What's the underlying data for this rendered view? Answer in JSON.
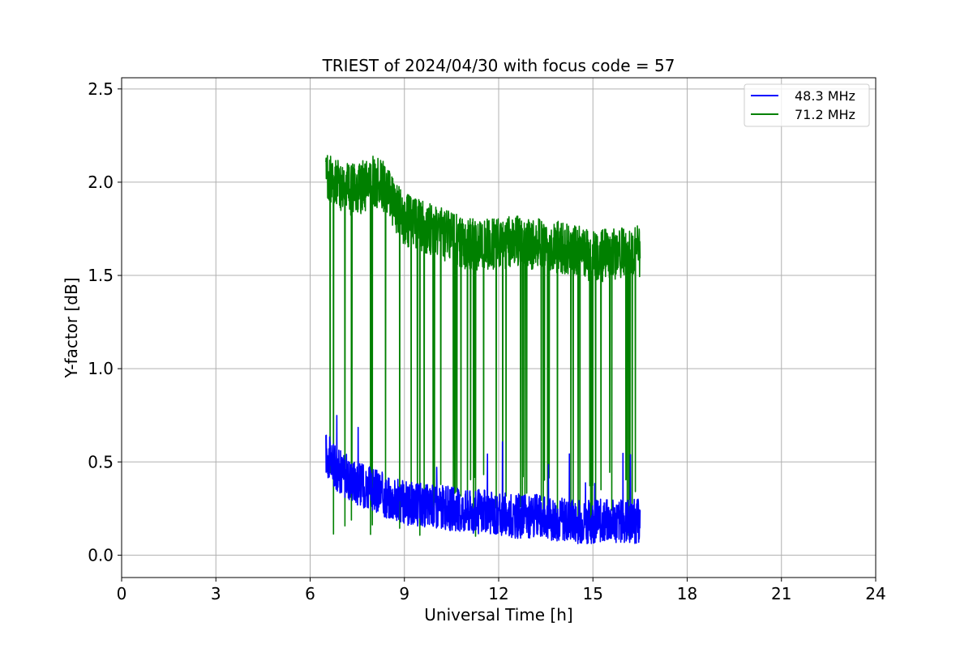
{
  "chart_data": {
    "type": "line",
    "title": "TRIEST of 2024/04/30 with focus code = 57",
    "xlabel": "Universal Time [h]",
    "ylabel": "Y-factor [dB]",
    "xlim": [
      0,
      24
    ],
    "ylim": [
      -0.12,
      2.56
    ],
    "xticks": [
      0,
      3,
      6,
      9,
      12,
      15,
      18,
      21,
      24
    ],
    "yticks": [
      0.0,
      0.5,
      1.0,
      1.5,
      2.0,
      2.5
    ],
    "xtick_labels": [
      "0",
      "3",
      "6",
      "9",
      "12",
      "15",
      "18",
      "21",
      "24"
    ],
    "ytick_labels": [
      "0.0",
      "0.5",
      "1.0",
      "1.5",
      "2.0",
      "2.5"
    ],
    "grid": true,
    "legend_position": "top-right",
    "series": [
      {
        "name": "48.3 MHz",
        "color": "#0000ff",
        "x": [
          6.5,
          6.6,
          6.8,
          7.0,
          7.3,
          7.6,
          8.0,
          8.5,
          9.0,
          9.5,
          10.0,
          10.5,
          11.0,
          11.5,
          12.0,
          12.5,
          13.0,
          13.5,
          14.0,
          14.5,
          15.0,
          15.5,
          16.0,
          16.5
        ],
        "y": [
          0.55,
          0.52,
          0.47,
          0.44,
          0.41,
          0.38,
          0.35,
          0.31,
          0.28,
          0.27,
          0.26,
          0.25,
          0.24,
          0.23,
          0.22,
          0.21,
          0.21,
          0.2,
          0.19,
          0.18,
          0.18,
          0.18,
          0.18,
          0.18
        ]
      },
      {
        "name": "71.2 MHz",
        "color": "#008000",
        "x": [
          6.5,
          6.7,
          7.0,
          7.3,
          7.6,
          8.0,
          8.3,
          8.7,
          9.0,
          9.5,
          10.0,
          10.5,
          11.0,
          11.5,
          12.0,
          12.5,
          13.0,
          13.5,
          14.0,
          14.5,
          15.0,
          15.5,
          16.0,
          16.5
        ],
        "y": [
          2.0,
          2.02,
          1.98,
          1.96,
          1.97,
          2.0,
          1.98,
          1.88,
          1.8,
          1.77,
          1.74,
          1.7,
          1.67,
          1.66,
          1.67,
          1.68,
          1.67,
          1.66,
          1.65,
          1.63,
          1.6,
          1.61,
          1.62,
          1.63
        ]
      }
    ]
  }
}
